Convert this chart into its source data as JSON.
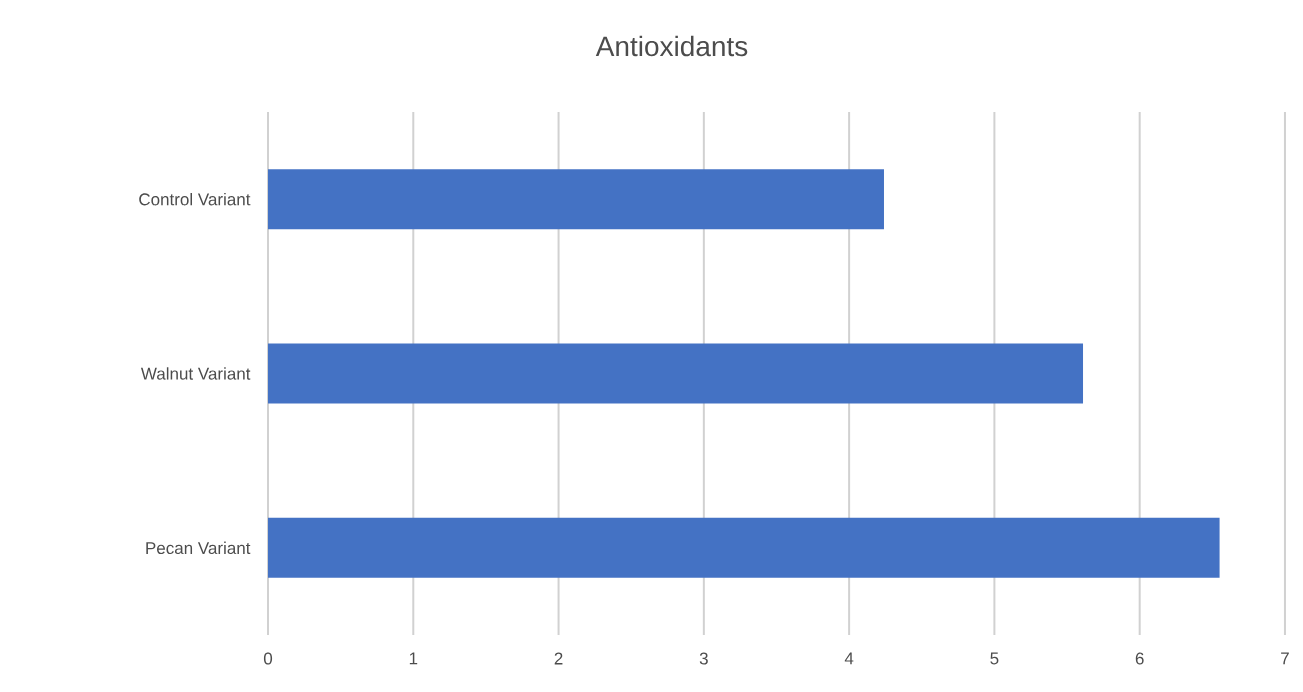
{
  "chart_data": {
    "type": "bar",
    "orientation": "horizontal",
    "title": "Antioxidants",
    "categories": [
      "Control Variant",
      "Walnut Variant",
      "Pecan Variant"
    ],
    "values": [
      4.24,
      5.61,
      6.55
    ],
    "color": "#4472c4",
    "xlim": [
      0,
      7
    ],
    "xticks": [
      0,
      1,
      2,
      3,
      4,
      5,
      6,
      7
    ],
    "grid": "x"
  }
}
